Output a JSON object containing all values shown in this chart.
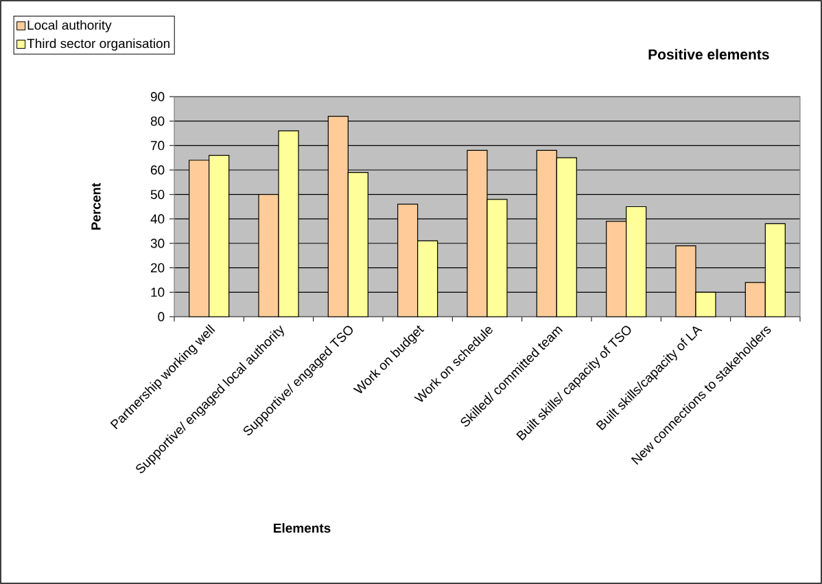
{
  "chart_data": {
    "type": "bar",
    "title": "Positive elements",
    "xlabel": "Elements",
    "ylabel": "Percent",
    "categories": [
      "Partnership working well",
      "Supportive/ engaged local authority",
      "Supportive/ engaged TSO",
      "Work on budget",
      "Work on schedule",
      "Skilled/ committed team",
      "Built skills/ capacity of TSO",
      "Built skills/capacity of LA",
      "New connections to stakeholders"
    ],
    "series": [
      {
        "name": "Local authority",
        "color": "#ffcc99",
        "values": [
          64,
          50,
          82,
          46,
          68,
          68,
          39,
          29,
          14
        ]
      },
      {
        "name": "Third sector organisation",
        "color": "#ffff99",
        "values": [
          66,
          76,
          59,
          31,
          48,
          65,
          45,
          10,
          38
        ]
      }
    ],
    "ylim": [
      0,
      90
    ],
    "yticks": [
      0,
      10,
      20,
      30,
      40,
      50,
      60,
      70,
      80,
      90
    ],
    "grid": "y",
    "legend": "top left"
  }
}
